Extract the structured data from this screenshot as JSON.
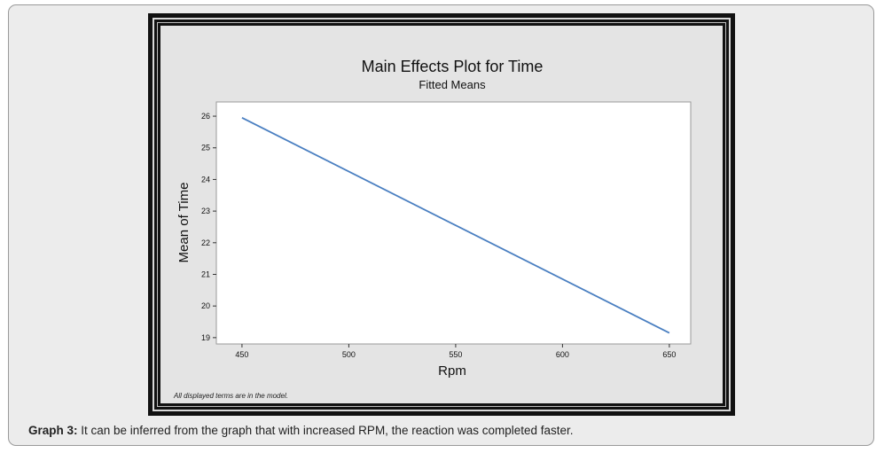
{
  "chart_data": {
    "type": "line",
    "title": "Main Effects Plot for Time",
    "subtitle": "Fitted Means",
    "xlabel": "Rpm",
    "ylabel": "Mean of Time",
    "x_ticks": [
      450,
      500,
      550,
      600,
      650
    ],
    "y_ticks": [
      19,
      20,
      21,
      22,
      23,
      24,
      25,
      26
    ],
    "xlim": [
      438,
      660
    ],
    "ylim": [
      18.8,
      26.45
    ],
    "grid": false,
    "series": [
      {
        "x": [
          450,
          650
        ],
        "y": [
          25.95,
          19.15
        ]
      }
    ],
    "footnote": "All displayed terms are in the model."
  },
  "colors": {
    "line": "#4a7fc1",
    "plot_bg": "#ffffff",
    "panel_bg": "#e4e4e4"
  },
  "caption": {
    "label": "Graph 3:",
    "text": " It can be inferred from the graph that with increased RPM, the reaction was completed faster."
  }
}
